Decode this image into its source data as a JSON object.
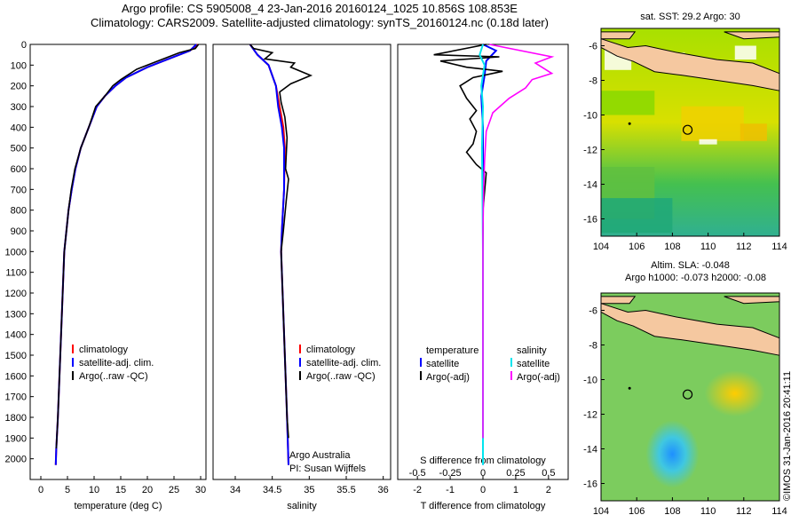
{
  "header": {
    "line1": "Argo profile: CS 5905008_4 23-Jan-2016 20160124_1025 10.856S 108.853E",
    "line2": "Climatology: CARS2009. Satellite-adjusted climatology: synTS_20160124.nc (0.18d later)"
  },
  "colors": {
    "climatology": "#ff0000",
    "satellite": "#0000ff",
    "argo": "#000000",
    "sat_cyan": "#00e5ee",
    "argo_magenta": "#ff00ff",
    "land": "#f5c8a0"
  },
  "chart_data": [
    {
      "type": "line",
      "id": "temperature",
      "xlabel": "temperature (deg C)",
      "xlim": [
        -2,
        31
      ],
      "ylim": [
        2100,
        0
      ],
      "xticks": [
        "0",
        "5",
        "10",
        "15",
        "20",
        "25",
        "30"
      ],
      "yticks": [
        "0",
        "100",
        "200",
        "300",
        "400",
        "500",
        "600",
        "700",
        "800",
        "900",
        "1000",
        "1100",
        "1200",
        "1300",
        "1400",
        "1500",
        "1600",
        "1700",
        "1800",
        "1900",
        "2000"
      ],
      "legend": [
        "climatology",
        "satellite-adj. clim.",
        "Argo(..raw -QC)"
      ],
      "series": [
        {
          "name": "climatology",
          "color": "#ff0000",
          "points": [
            [
              29.5,
              0
            ],
            [
              28,
              30
            ],
            [
              24,
              70
            ],
            [
              20,
              110
            ],
            [
              16,
              160
            ],
            [
              14,
              200
            ],
            [
              12,
              250
            ],
            [
              10.5,
              300
            ],
            [
              9,
              400
            ],
            [
              7.5,
              500
            ],
            [
              6.5,
              600
            ],
            [
              5.8,
              700
            ],
            [
              5.2,
              800
            ],
            [
              4.8,
              900
            ],
            [
              4.4,
              1000
            ],
            [
              4.1,
              1200
            ],
            [
              3.8,
              1400
            ],
            [
              3.5,
              1600
            ],
            [
              3.2,
              1800
            ],
            [
              2.9,
              1950
            ],
            [
              2.8,
              2030
            ]
          ]
        },
        {
          "name": "satellite-adj. clim.",
          "color": "#0000ff",
          "points": [
            [
              29.2,
              0
            ],
            [
              28,
              30
            ],
            [
              24,
              70
            ],
            [
              20,
              110
            ],
            [
              16,
              160
            ],
            [
              14,
              200
            ],
            [
              12,
              250
            ],
            [
              10.5,
              300
            ],
            [
              9,
              400
            ],
            [
              7.5,
              500
            ],
            [
              6.5,
              600
            ],
            [
              5.8,
              700
            ],
            [
              5.2,
              800
            ],
            [
              4.8,
              900
            ],
            [
              4.4,
              1000
            ],
            [
              4.1,
              1200
            ],
            [
              3.8,
              1400
            ],
            [
              3.5,
              1600
            ],
            [
              3.2,
              1800
            ],
            [
              2.9,
              1950
            ],
            [
              2.8,
              2030
            ]
          ]
        },
        {
          "name": "Argo(..raw -QC)",
          "color": "#000000",
          "points": [
            [
              29.6,
              0
            ],
            [
              29,
              20
            ],
            [
              26,
              40
            ],
            [
              22,
              80
            ],
            [
              18,
              120
            ],
            [
              15,
              170
            ],
            [
              13.5,
              200
            ],
            [
              12,
              250
            ],
            [
              10.3,
              300
            ],
            [
              9,
              400
            ],
            [
              7.5,
              500
            ],
            [
              6.4,
              600
            ],
            [
              5.7,
              700
            ],
            [
              5.2,
              800
            ],
            [
              4.8,
              900
            ],
            [
              4.4,
              1000
            ],
            [
              4.1,
              1200
            ],
            [
              3.8,
              1400
            ],
            [
              3.5,
              1600
            ],
            [
              3.2,
              1800
            ],
            [
              2.9,
              1950
            ]
          ]
        }
      ]
    },
    {
      "type": "line",
      "id": "salinity",
      "xlabel": "salinity",
      "xlim": [
        33.7,
        36.1
      ],
      "ylim": [
        2100,
        0
      ],
      "xticks": [
        "34",
        "34.5",
        "35",
        "35.5",
        "36"
      ],
      "legend": [
        "climatology",
        "satellite-adj. clim.",
        "Argo(..raw -QC)"
      ],
      "annotation": [
        "Argo Australia",
        "PI: Susan Wijffels"
      ],
      "series": [
        {
          "name": "climatology",
          "color": "#ff0000",
          "points": [
            [
              34.2,
              0
            ],
            [
              34.3,
              50
            ],
            [
              34.45,
              100
            ],
            [
              34.55,
              200
            ],
            [
              34.6,
              300
            ],
            [
              34.65,
              400
            ],
            [
              34.67,
              500
            ],
            [
              34.66,
              700
            ],
            [
              34.63,
              900
            ],
            [
              34.62,
              1000
            ],
            [
              34.64,
              1200
            ],
            [
              34.66,
              1400
            ],
            [
              34.68,
              1600
            ],
            [
              34.7,
              1800
            ],
            [
              34.72,
              2030
            ]
          ]
        },
        {
          "name": "satellite-adj. clim.",
          "color": "#0000ff",
          "points": [
            [
              34.2,
              0
            ],
            [
              34.3,
              50
            ],
            [
              34.45,
              100
            ],
            [
              34.55,
              200
            ],
            [
              34.58,
              300
            ],
            [
              34.63,
              400
            ],
            [
              34.66,
              500
            ],
            [
              34.66,
              700
            ],
            [
              34.63,
              900
            ],
            [
              34.62,
              1000
            ],
            [
              34.64,
              1200
            ],
            [
              34.66,
              1400
            ],
            [
              34.68,
              1600
            ],
            [
              34.7,
              1800
            ],
            [
              34.72,
              2030
            ]
          ]
        },
        {
          "name": "Argo(..raw -QC)",
          "color": "#000000",
          "points": [
            [
              34.2,
              0
            ],
            [
              34.25,
              20
            ],
            [
              34.5,
              40
            ],
            [
              34.4,
              70
            ],
            [
              34.8,
              90
            ],
            [
              34.75,
              110
            ],
            [
              35.02,
              150
            ],
            [
              34.75,
              190
            ],
            [
              34.6,
              230
            ],
            [
              34.62,
              280
            ],
            [
              34.67,
              350
            ],
            [
              34.7,
              450
            ],
            [
              34.68,
              600
            ],
            [
              34.72,
              650
            ],
            [
              34.69,
              750
            ],
            [
              34.65,
              900
            ],
            [
              34.62,
              1000
            ],
            [
              34.64,
              1200
            ],
            [
              34.66,
              1400
            ],
            [
              34.68,
              1600
            ],
            [
              34.7,
              1800
            ],
            [
              34.72,
              1900
            ]
          ]
        }
      ]
    },
    {
      "type": "line",
      "id": "difference",
      "xlabel": "T difference from climatology",
      "xlabel_top": "S difference from climatology",
      "xlim": [
        -2.6,
        2.6
      ],
      "ylim": [
        2100,
        0
      ],
      "xticks": [
        "-2",
        "-1",
        "0",
        "1",
        "2"
      ],
      "xticks_top": [
        "-0.5",
        "-0.25",
        "0",
        "0.25",
        "0.5"
      ],
      "legend_left": {
        "title": "temperature",
        "items": [
          "satellite",
          "Argo(-adj)"
        ]
      },
      "legend_right": {
        "title": "salinity",
        "items": [
          "satellite",
          "Argo(-adj)"
        ]
      },
      "series": [
        {
          "name": "T satellite",
          "color": "#0000ff",
          "points": [
            [
              0,
              0
            ],
            [
              0.4,
              30
            ],
            [
              0.1,
              80
            ],
            [
              0.05,
              150
            ],
            [
              -0.05,
              250
            ],
            [
              0,
              400
            ],
            [
              0,
              1000
            ],
            [
              0,
              2030
            ]
          ]
        },
        {
          "name": "T Argo(-adj)",
          "color": "#000000",
          "points": [
            [
              0.1,
              0
            ],
            [
              -1.5,
              50
            ],
            [
              0.5,
              60
            ],
            [
              -1.3,
              80
            ],
            [
              -0.5,
              110
            ],
            [
              0.6,
              130
            ],
            [
              -0.3,
              160
            ],
            [
              -0.7,
              200
            ],
            [
              -0.5,
              260
            ],
            [
              -0.2,
              320
            ],
            [
              -0.4,
              360
            ],
            [
              -0.2,
              420
            ],
            [
              -0.3,
              480
            ],
            [
              -0.5,
              520
            ],
            [
              -0.2,
              580
            ],
            [
              0.1,
              620
            ],
            [
              0,
              800
            ],
            [
              0,
              1000
            ],
            [
              0,
              1900
            ]
          ]
        },
        {
          "name": "S satellite",
          "color": "#00e5ee",
          "points": [
            [
              0,
              0
            ],
            [
              -0.1,
              50
            ],
            [
              0.05,
              100
            ],
            [
              -0.05,
              200
            ],
            [
              0,
              300
            ],
            [
              -0.03,
              500
            ],
            [
              -0.01,
              800
            ],
            [
              0,
              1000
            ],
            [
              0,
              2030
            ]
          ]
        },
        {
          "name": "S Argo(-adj)",
          "color": "#ff00ff",
          "points": [
            [
              0.2,
              0
            ],
            [
              2.1,
              60
            ],
            [
              1.6,
              90
            ],
            [
              2.1,
              140
            ],
            [
              1.5,
              170
            ],
            [
              1.3,
              210
            ],
            [
              0.8,
              260
            ],
            [
              0.3,
              330
            ],
            [
              0.1,
              420
            ],
            [
              0.05,
              560
            ],
            [
              0.02,
              700
            ],
            [
              0,
              900
            ],
            [
              0,
              1900
            ]
          ]
        }
      ]
    },
    {
      "type": "heatmap",
      "id": "sst_map",
      "title": "sat. SST: 29.2 Argo: 30",
      "xlim": [
        104,
        114
      ],
      "ylim": [
        -17,
        -5
      ],
      "xticks": [
        "104",
        "106",
        "108",
        "110",
        "112",
        "114"
      ],
      "yticks": [
        "-6",
        "-8",
        "-10",
        "-12",
        "-14",
        "-16"
      ],
      "marker": {
        "lon": 108.853,
        "lat": -10.856
      }
    },
    {
      "type": "heatmap",
      "id": "sla_map",
      "title": "Altim. SLA: -0.048",
      "subtitle": "Argo h1000: -0.073 h2000: -0.08",
      "xlim": [
        104,
        114
      ],
      "ylim": [
        -17,
        -5
      ],
      "xticks": [
        "104",
        "106",
        "108",
        "110",
        "112",
        "114"
      ],
      "yticks": [
        "-6",
        "-8",
        "-10",
        "-12",
        "-14",
        "-16"
      ],
      "marker": {
        "lon": 108.853,
        "lat": -10.856
      },
      "credit": "©IMOS 31-Jan-2016 20:41:11"
    }
  ]
}
